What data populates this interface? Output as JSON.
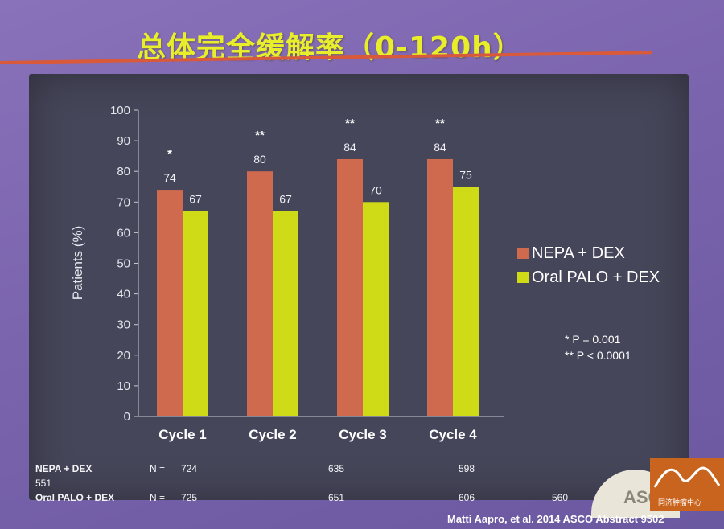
{
  "slide": {
    "title": "总体完全缓解率（0-120h）",
    "citation": "Matti Aapro, et al. 2014 ASCO Abstract 9502",
    "logo_text": "ASCO",
    "corner_logo_text": "同济肿瘤中心"
  },
  "colors": {
    "nepa": "#cf6a4e",
    "palo": "#cfdb16",
    "title": "#e8ee2a"
  },
  "chart_data": {
    "type": "bar",
    "categories": [
      "Cycle 1",
      "Cycle 2",
      "Cycle 3",
      "Cycle 4"
    ],
    "series": [
      {
        "name": "NEPA + DEX",
        "values": [
          74,
          80,
          84,
          84
        ]
      },
      {
        "name": "Oral PALO + DEX",
        "values": [
          67,
          67,
          70,
          75
        ]
      }
    ],
    "significance": [
      "*",
      "**",
      "**",
      "**"
    ],
    "ylabel": "Patients (%)",
    "ylim": [
      0,
      100
    ],
    "yticks": [
      0,
      10,
      20,
      30,
      40,
      50,
      60,
      70,
      80,
      90,
      100
    ],
    "legend_position": "right",
    "grid": false,
    "pvalue_notes": [
      "* P = 0.001",
      "** P < 0.0001"
    ]
  },
  "n_table": {
    "nepa_label": "NEPA + DEX",
    "palo_label": "Oral PALO + DEX",
    "n_prefix": "N =",
    "nepa_n": [
      "724",
      "635",
      "598",
      "551"
    ],
    "palo_n": [
      "725",
      "651",
      "606",
      "560"
    ]
  }
}
